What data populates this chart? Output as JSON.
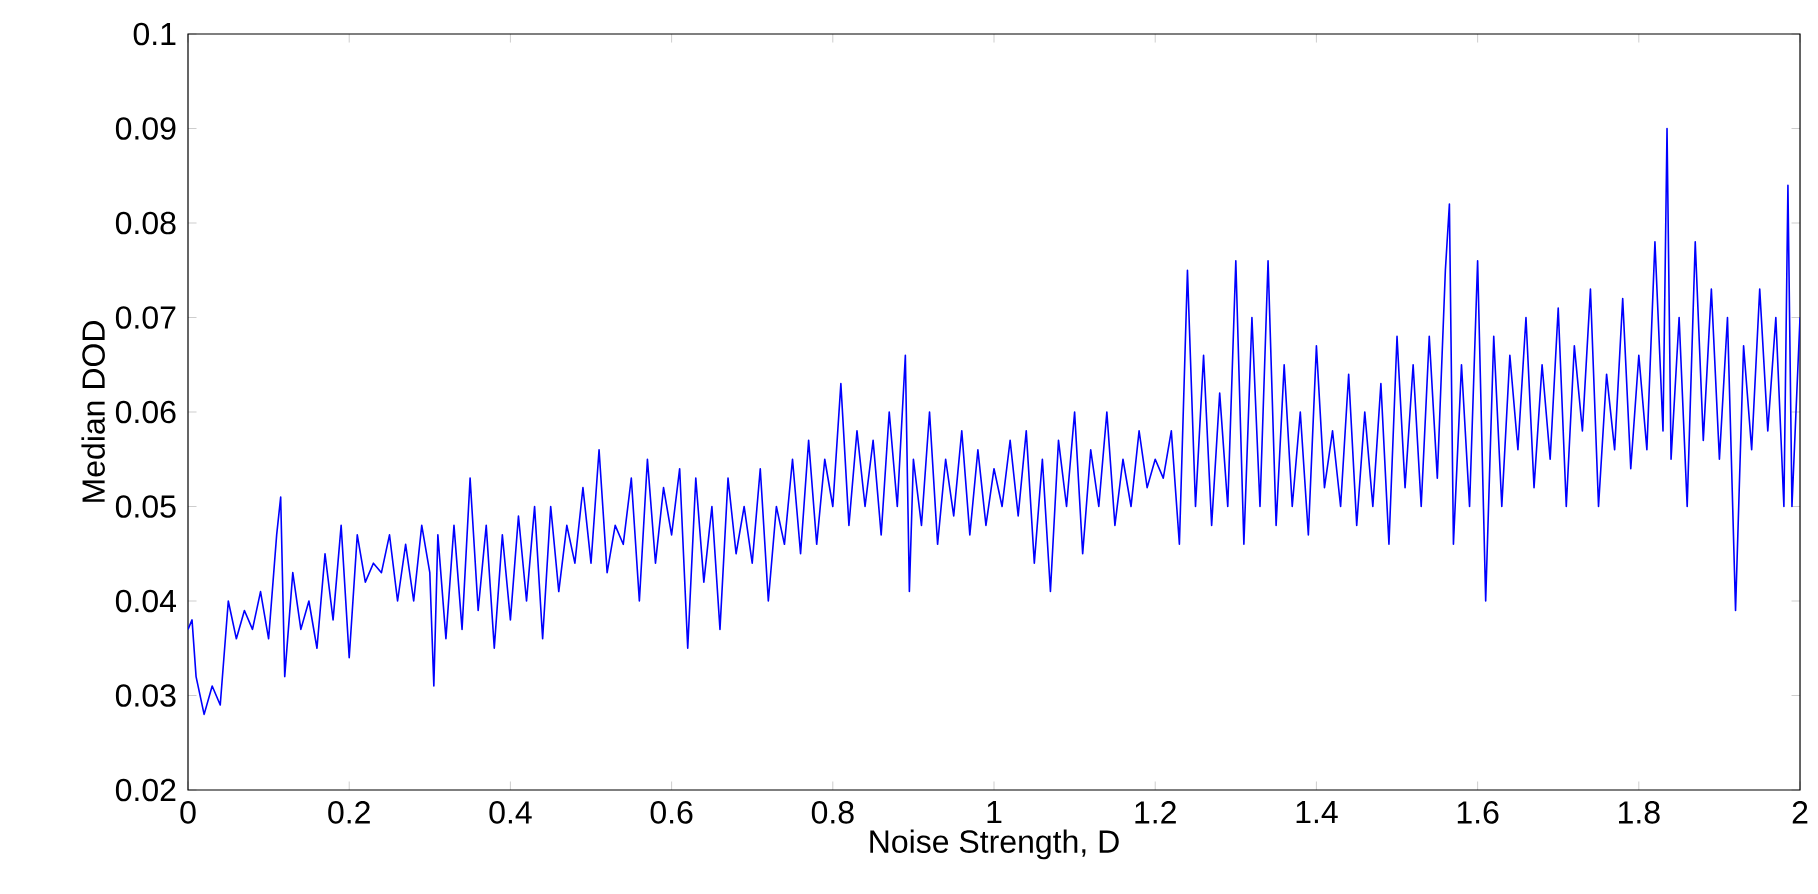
{
  "chart_data": {
    "type": "line",
    "xlabel": "Noise Strength, D",
    "ylabel": "Median DOD",
    "xlim": [
      0,
      2
    ],
    "ylim": [
      0.02,
      0.1
    ],
    "xticks": [
      0,
      0.2,
      0.4,
      0.6,
      0.8,
      1,
      1.2,
      1.4,
      1.6,
      1.8,
      2
    ],
    "yticks": [
      0.02,
      0.03,
      0.04,
      0.05,
      0.06,
      0.07,
      0.08,
      0.09,
      0.1
    ],
    "series": [
      {
        "color": "#0000ff",
        "x": [
          0,
          0.005,
          0.01,
          0.02,
          0.03,
          0.04,
          0.05,
          0.06,
          0.07,
          0.08,
          0.09,
          0.1,
          0.11,
          0.115,
          0.12,
          0.13,
          0.14,
          0.15,
          0.16,
          0.17,
          0.18,
          0.19,
          0.2,
          0.21,
          0.22,
          0.23,
          0.24,
          0.25,
          0.26,
          0.27,
          0.28,
          0.29,
          0.3,
          0.305,
          0.31,
          0.32,
          0.33,
          0.34,
          0.35,
          0.36,
          0.37,
          0.38,
          0.39,
          0.4,
          0.41,
          0.42,
          0.43,
          0.44,
          0.45,
          0.46,
          0.47,
          0.48,
          0.49,
          0.5,
          0.51,
          0.52,
          0.53,
          0.54,
          0.55,
          0.56,
          0.57,
          0.58,
          0.59,
          0.6,
          0.61,
          0.62,
          0.63,
          0.64,
          0.65,
          0.66,
          0.67,
          0.68,
          0.69,
          0.7,
          0.71,
          0.72,
          0.73,
          0.74,
          0.75,
          0.76,
          0.77,
          0.78,
          0.79,
          0.8,
          0.81,
          0.82,
          0.83,
          0.84,
          0.85,
          0.86,
          0.87,
          0.88,
          0.89,
          0.895,
          0.9,
          0.91,
          0.92,
          0.93,
          0.94,
          0.95,
          0.96,
          0.97,
          0.98,
          0.99,
          1.0,
          1.01,
          1.02,
          1.03,
          1.04,
          1.05,
          1.06,
          1.07,
          1.08,
          1.09,
          1.1,
          1.11,
          1.12,
          1.13,
          1.14,
          1.15,
          1.16,
          1.17,
          1.18,
          1.19,
          1.2,
          1.21,
          1.22,
          1.23,
          1.24,
          1.25,
          1.26,
          1.27,
          1.28,
          1.29,
          1.3,
          1.31,
          1.32,
          1.33,
          1.34,
          1.35,
          1.36,
          1.37,
          1.38,
          1.39,
          1.4,
          1.41,
          1.42,
          1.43,
          1.44,
          1.45,
          1.46,
          1.47,
          1.48,
          1.49,
          1.5,
          1.51,
          1.52,
          1.53,
          1.54,
          1.55,
          1.56,
          1.565,
          1.57,
          1.58,
          1.59,
          1.6,
          1.61,
          1.62,
          1.63,
          1.64,
          1.65,
          1.66,
          1.67,
          1.68,
          1.69,
          1.7,
          1.71,
          1.72,
          1.73,
          1.74,
          1.75,
          1.76,
          1.77,
          1.78,
          1.79,
          1.8,
          1.81,
          1.82,
          1.83,
          1.835,
          1.84,
          1.85,
          1.86,
          1.87,
          1.88,
          1.89,
          1.9,
          1.91,
          1.92,
          1.93,
          1.94,
          1.95,
          1.96,
          1.97,
          1.98,
          1.985,
          1.99,
          2.0
        ],
        "values": [
          0.037,
          0.038,
          0.032,
          0.028,
          0.031,
          0.029,
          0.04,
          0.036,
          0.039,
          0.037,
          0.041,
          0.036,
          0.047,
          0.051,
          0.032,
          0.043,
          0.037,
          0.04,
          0.035,
          0.045,
          0.038,
          0.048,
          0.034,
          0.047,
          0.042,
          0.044,
          0.043,
          0.047,
          0.04,
          0.046,
          0.04,
          0.048,
          0.043,
          0.031,
          0.047,
          0.036,
          0.048,
          0.037,
          0.053,
          0.039,
          0.048,
          0.035,
          0.047,
          0.038,
          0.049,
          0.04,
          0.05,
          0.036,
          0.05,
          0.041,
          0.048,
          0.044,
          0.052,
          0.044,
          0.056,
          0.043,
          0.048,
          0.046,
          0.053,
          0.04,
          0.055,
          0.044,
          0.052,
          0.047,
          0.054,
          0.035,
          0.053,
          0.042,
          0.05,
          0.037,
          0.053,
          0.045,
          0.05,
          0.044,
          0.054,
          0.04,
          0.05,
          0.046,
          0.055,
          0.045,
          0.057,
          0.046,
          0.055,
          0.05,
          0.063,
          0.048,
          0.058,
          0.05,
          0.057,
          0.047,
          0.06,
          0.05,
          0.066,
          0.041,
          0.055,
          0.048,
          0.06,
          0.046,
          0.055,
          0.049,
          0.058,
          0.047,
          0.056,
          0.048,
          0.054,
          0.05,
          0.057,
          0.049,
          0.058,
          0.044,
          0.055,
          0.041,
          0.057,
          0.05,
          0.06,
          0.045,
          0.056,
          0.05,
          0.06,
          0.048,
          0.055,
          0.05,
          0.058,
          0.052,
          0.055,
          0.053,
          0.058,
          0.046,
          0.075,
          0.05,
          0.066,
          0.048,
          0.062,
          0.05,
          0.076,
          0.046,
          0.07,
          0.05,
          0.076,
          0.048,
          0.065,
          0.05,
          0.06,
          0.047,
          0.067,
          0.052,
          0.058,
          0.05,
          0.064,
          0.048,
          0.06,
          0.05,
          0.063,
          0.046,
          0.068,
          0.052,
          0.065,
          0.05,
          0.068,
          0.053,
          0.075,
          0.082,
          0.046,
          0.065,
          0.05,
          0.076,
          0.04,
          0.068,
          0.05,
          0.066,
          0.056,
          0.07,
          0.052,
          0.065,
          0.055,
          0.071,
          0.05,
          0.067,
          0.058,
          0.073,
          0.05,
          0.064,
          0.056,
          0.072,
          0.054,
          0.066,
          0.056,
          0.078,
          0.058,
          0.09,
          0.055,
          0.07,
          0.05,
          0.078,
          0.057,
          0.073,
          0.055,
          0.07,
          0.039,
          0.067,
          0.056,
          0.073,
          0.058,
          0.07,
          0.05,
          0.084,
          0.05,
          0.07
        ]
      }
    ]
  }
}
